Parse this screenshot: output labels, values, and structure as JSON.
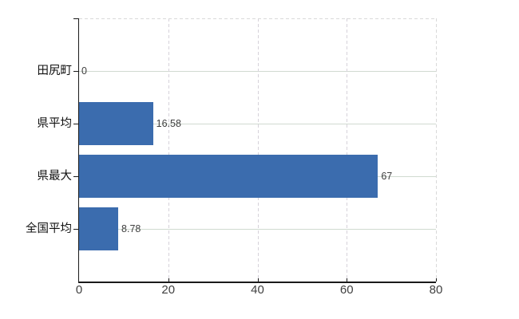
{
  "chart_data": {
    "type": "bar",
    "orientation": "horizontal",
    "categories": [
      "田尻町",
      "県平均",
      "県最大",
      "全国平均"
    ],
    "values": [
      0,
      16.58,
      67,
      8.78
    ],
    "value_labels": [
      "0",
      "16.58",
      "67",
      "8.78"
    ],
    "x_ticks": [
      "0",
      "20",
      "40",
      "60",
      "80"
    ],
    "xlim": [
      0,
      80
    ],
    "grid": true,
    "legend_position": "none"
  },
  "colors": {
    "bar": "#3b6cae",
    "axis": "#1a1a1a",
    "grid_horizontal": "#d0dad0",
    "grid_vertical": "#d6d2da",
    "plot_border_dashed": "#d9d9d9",
    "category_label": "#111111",
    "value_label": "#3f3f3f",
    "tick_label": "#3f3f3f",
    "background": "#ffffff"
  }
}
